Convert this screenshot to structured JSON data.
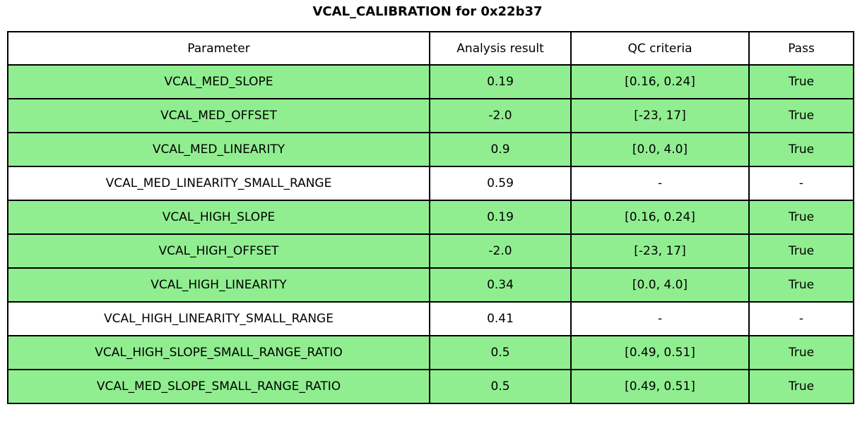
{
  "colors": {
    "pass_row_bg": "#90EE90",
    "neutral_row_bg": "#FFFFFF",
    "border": "#000000",
    "text": "#000000"
  },
  "chart_data": {
    "type": "table",
    "title": "VCAL_CALIBRATION for 0x22b37",
    "columns": [
      "Parameter",
      "Analysis result",
      "QC criteria",
      "Pass"
    ],
    "rows": [
      {
        "parameter": "VCAL_MED_SLOPE",
        "result": "0.19",
        "criteria": "[0.16, 0.24]",
        "pass": "True",
        "highlighted": true
      },
      {
        "parameter": "VCAL_MED_OFFSET",
        "result": "-2.0",
        "criteria": "[-23, 17]",
        "pass": "True",
        "highlighted": true
      },
      {
        "parameter": "VCAL_MED_LINEARITY",
        "result": "0.9",
        "criteria": "[0.0, 4.0]",
        "pass": "True",
        "highlighted": true
      },
      {
        "parameter": "VCAL_MED_LINEARITY_SMALL_RANGE",
        "result": "0.59",
        "criteria": "-",
        "pass": "-",
        "highlighted": false
      },
      {
        "parameter": "VCAL_HIGH_SLOPE",
        "result": "0.19",
        "criteria": "[0.16, 0.24]",
        "pass": "True",
        "highlighted": true
      },
      {
        "parameter": "VCAL_HIGH_OFFSET",
        "result": "-2.0",
        "criteria": "[-23, 17]",
        "pass": "True",
        "highlighted": true
      },
      {
        "parameter": "VCAL_HIGH_LINEARITY",
        "result": "0.34",
        "criteria": "[0.0, 4.0]",
        "pass": "True",
        "highlighted": true
      },
      {
        "parameter": "VCAL_HIGH_LINEARITY_SMALL_RANGE",
        "result": "0.41",
        "criteria": "-",
        "pass": "-",
        "highlighted": false
      },
      {
        "parameter": "VCAL_HIGH_SLOPE_SMALL_RANGE_RATIO",
        "result": "0.5",
        "criteria": "[0.49, 0.51]",
        "pass": "True",
        "highlighted": true
      },
      {
        "parameter": "VCAL_MED_SLOPE_SMALL_RANGE_RATIO",
        "result": "0.5",
        "criteria": "[0.49, 0.51]",
        "pass": "True",
        "highlighted": true
      }
    ]
  }
}
